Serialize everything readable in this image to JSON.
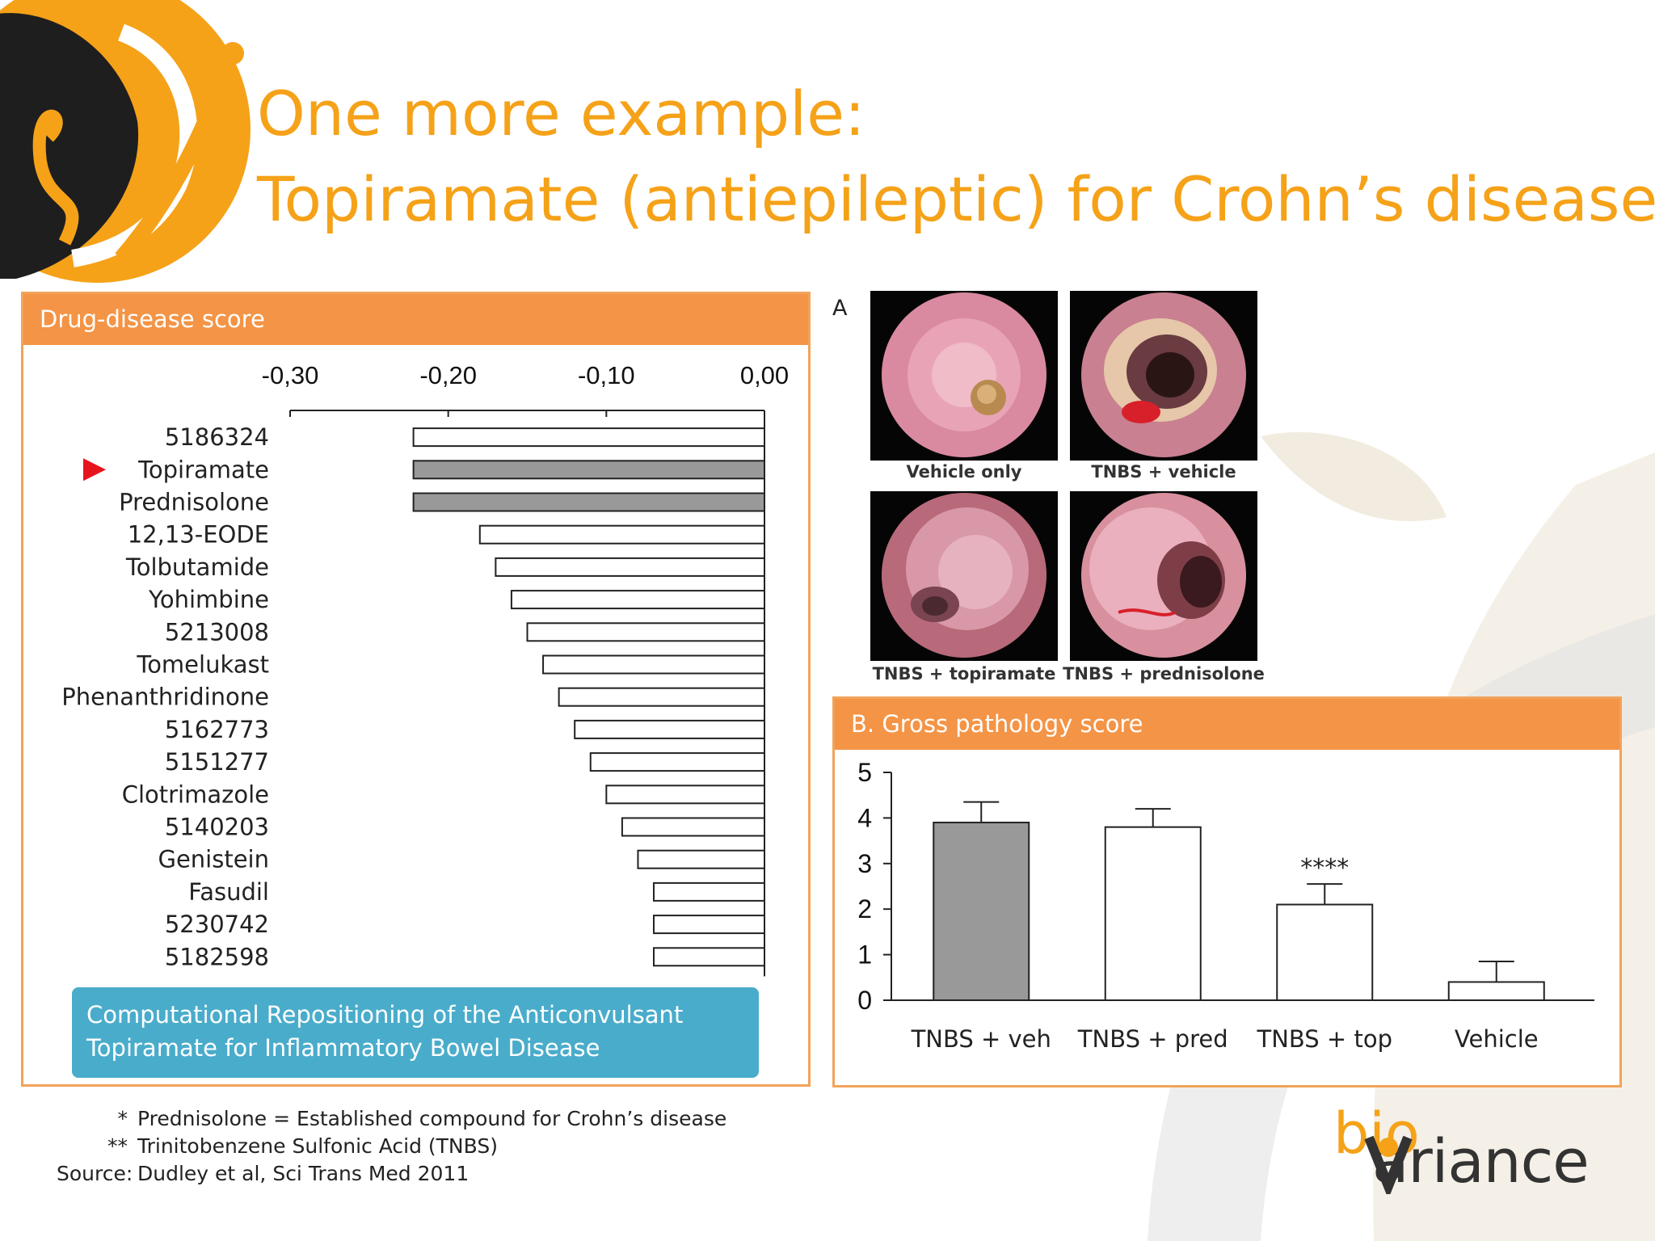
{
  "slide": {
    "title_line1": "One more example:",
    "title_line2": "Topiramate (antiepileptic) for Crohn’s disease",
    "accent_color": "#f5a219",
    "panel_header_color": "#f49446",
    "ref_box_color": "#4aaccb"
  },
  "left_panel": {
    "header": "Drug-disease score",
    "marker_label": "Topiramate",
    "reference": "Computational Repositioning of the Anticonvulsant Topiramate for Inflammatory Bowel Disease"
  },
  "photos": {
    "panel_label": "A",
    "captions": [
      "Vehicle only",
      "TNBS + vehicle",
      "TNBS + topiramate",
      "TNBS + prednisolone"
    ]
  },
  "right_panel": {
    "header": "B. Gross pathology score"
  },
  "notes": [
    {
      "key": "*",
      "text": "Prednisolone = Established compound for Crohn’s disease"
    },
    {
      "key": "**",
      "text": "Trinitobenzene Sulfonic Acid (TNBS)"
    },
    {
      "key": "Source:",
      "text": "Dudley et al, Sci Trans Med 2011"
    }
  ],
  "brand": {
    "bio": "bio",
    "name": "ariance"
  },
  "chart_data": [
    {
      "type": "bar",
      "orientation": "horizontal",
      "title": "Drug-disease score",
      "categories": [
        "5186324",
        "Topiramate",
        "Prednisolone",
        "12,13-EODE",
        "Tolbutamide",
        "Yohimbine",
        "5213008",
        "Tomelukast",
        "Phenanthridinone",
        "5162773",
        "5151277",
        "Clotrimazole",
        "5140203",
        "Genistein",
        "Fasudil",
        "5230742",
        "5182598"
      ],
      "values": [
        -0.222,
        -0.222,
        -0.222,
        -0.18,
        -0.17,
        -0.16,
        -0.15,
        -0.14,
        -0.13,
        -0.12,
        -0.11,
        -0.1,
        -0.09,
        -0.08,
        -0.07,
        -0.07,
        -0.07
      ],
      "highlighted": [
        "Topiramate",
        "Prednisolone"
      ],
      "xlim": [
        -0.3,
        0.0
      ],
      "xticks": [
        "-0,30",
        "-0,20",
        "-0,10",
        "0,00"
      ],
      "axis_position": "top",
      "highlight_color": "#999999"
    },
    {
      "type": "bar",
      "title": "B. Gross pathology score",
      "categories": [
        "TNBS + veh",
        "TNBS + pred",
        "TNBS + top",
        "Vehicle"
      ],
      "values": [
        3.9,
        3.8,
        2.1,
        0.4
      ],
      "errors": [
        0.45,
        0.4,
        0.45,
        0.45
      ],
      "annotations": [
        "",
        "",
        "****",
        ""
      ],
      "filled": [
        true,
        false,
        false,
        false
      ],
      "ylim": [
        0,
        5
      ],
      "yticks": [
        "0",
        "1",
        "2",
        "3",
        "4",
        "5"
      ],
      "fill_color": "#999999"
    }
  ]
}
